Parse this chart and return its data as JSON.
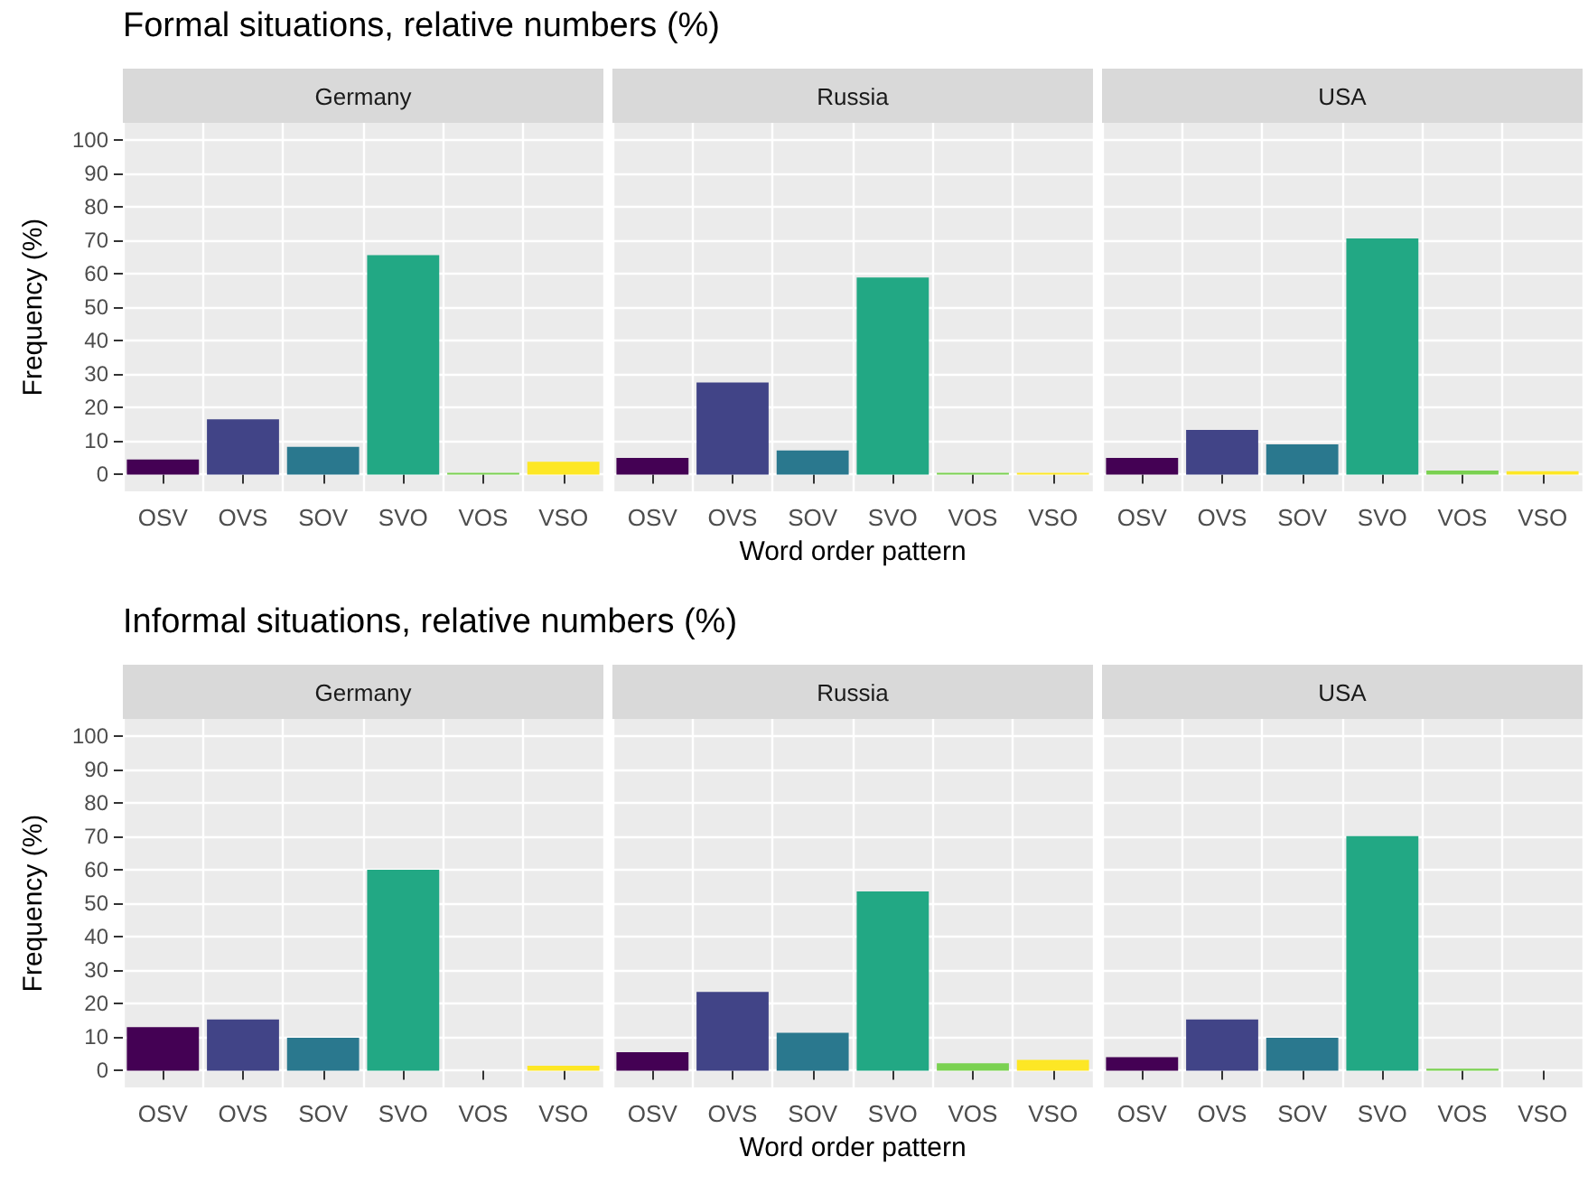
{
  "chart_data": [
    {
      "type": "bar",
      "title": "Formal situations, relative numbers (%)",
      "subtitle": "Germany",
      "ylabel": "Frequency (%)",
      "categories": [
        "OSV",
        "OVS",
        "SOV",
        "SVO",
        "VOS",
        "VSO"
      ],
      "values": [
        4.5,
        16.5,
        8.3,
        65.5,
        0.5,
        3.8
      ],
      "colors": [
        "#440154",
        "#414487",
        "#2a788e",
        "#22a884",
        "#7ad151",
        "#fde725"
      ],
      "ylim": [
        -5,
        105
      ],
      "yticks": [
        0,
        10,
        20,
        30,
        40,
        50,
        60,
        70,
        80,
        90,
        100
      ],
      "grid": true
    },
    {
      "type": "bar",
      "subtitle": "Russia",
      "xlabel": "Word order pattern",
      "categories": [
        "OSV",
        "OVS",
        "SOV",
        "SVO",
        "VOS",
        "VSO"
      ],
      "values": [
        5,
        27.5,
        7.2,
        58.8,
        0.5,
        0.5
      ],
      "colors": [
        "#440154",
        "#414487",
        "#2a788e",
        "#22a884",
        "#7ad151",
        "#fde725"
      ],
      "ylim": [
        -5,
        105
      ],
      "yticks": [
        0,
        10,
        20,
        30,
        40,
        50,
        60,
        70,
        80,
        90,
        100
      ],
      "grid": true,
      "tick_labels": "x"
    },
    {
      "type": "bar",
      "subtitle": "USA",
      "categories": [
        "OSV",
        "OVS",
        "SOV",
        "SVO",
        "VOS",
        "VSO"
      ],
      "values": [
        5,
        13.3,
        9,
        70.5,
        1.2,
        1
      ],
      "colors": [
        "#440154",
        "#414487",
        "#2a788e",
        "#22a884",
        "#7ad151",
        "#fde725"
      ],
      "ylim": [
        -5,
        105
      ],
      "yticks": [
        0,
        10,
        20,
        30,
        40,
        50,
        60,
        70,
        80,
        90,
        100
      ],
      "grid": true,
      "tick_labels": "x"
    },
    {
      "type": "bar",
      "title": "Informal situations, relative numbers (%)",
      "subtitle": "Germany",
      "ylabel": "Frequency (%)",
      "categories": [
        "OSV",
        "OVS",
        "SOV",
        "SVO",
        "VOS",
        "VSO"
      ],
      "values": [
        13,
        15.3,
        9.8,
        60,
        0,
        1.5
      ],
      "colors": [
        "#440154",
        "#414487",
        "#2a788e",
        "#22a884",
        "#7ad151",
        "#fde725"
      ],
      "ylim": [
        -5,
        105
      ],
      "yticks": [
        0,
        10,
        20,
        30,
        40,
        50,
        60,
        70,
        80,
        90,
        100
      ],
      "grid": true
    },
    {
      "type": "bar",
      "subtitle": "Russia",
      "xlabel": "Word order pattern",
      "categories": [
        "OSV",
        "OVS",
        "SOV",
        "SVO",
        "VOS",
        "VSO"
      ],
      "values": [
        5.5,
        23.5,
        11.3,
        53.5,
        2.2,
        3.2
      ],
      "colors": [
        "#440154",
        "#414487",
        "#2a788e",
        "#22a884",
        "#7ad151",
        "#fde725"
      ],
      "ylim": [
        -5,
        105
      ],
      "yticks": [
        0,
        10,
        20,
        30,
        40,
        50,
        60,
        70,
        80,
        90,
        100
      ],
      "grid": true,
      "tick_labels": "x"
    },
    {
      "type": "bar",
      "subtitle": "USA",
      "categories": [
        "OSV",
        "OVS",
        "SOV",
        "SVO",
        "VOS",
        "VSO"
      ],
      "values": [
        4,
        15.3,
        9.8,
        70,
        0.6,
        0
      ],
      "colors": [
        "#440154",
        "#414487",
        "#2a788e",
        "#22a884",
        "#7ad151",
        "#fde725"
      ],
      "ylim": [
        -5,
        105
      ],
      "yticks": [
        0,
        10,
        20,
        30,
        40,
        50,
        60,
        70,
        80,
        90,
        100
      ],
      "grid": true,
      "tick_labels": "x"
    }
  ]
}
